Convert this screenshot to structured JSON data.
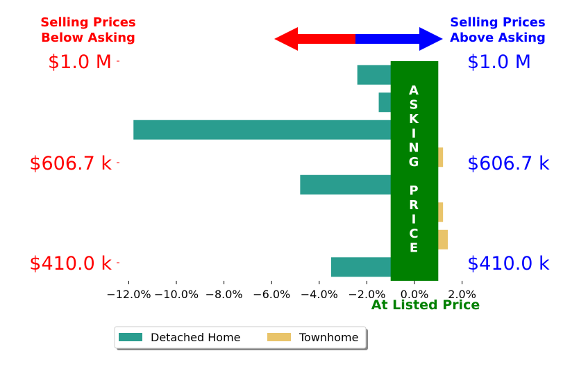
{
  "chart_data": {
    "type": "bar",
    "orientation": "horizontal",
    "annotations": {
      "left_title": [
        "Selling Prices",
        "Below Asking"
      ],
      "right_title": [
        "Selling Prices",
        "Above Asking"
      ],
      "center_band_text": "ASKING PRICE",
      "center_band_letters": [
        "A",
        "S",
        "K",
        "I",
        "N",
        "G",
        "",
        "P",
        "R",
        "I",
        "C",
        "E"
      ],
      "x_title": "At Listed Price"
    },
    "y_labels": [
      "$1.0 M",
      "$606.7 k",
      "$410.0 k"
    ],
    "xlim": [
      -13.0,
      2.5
    ],
    "x_ticks": [
      -12,
      -10,
      -8,
      -6,
      -4,
      -2,
      0,
      2
    ],
    "x_tick_labels": [
      "−12.0%",
      "−10.0%",
      "−8.0%",
      "−6.0%",
      "−4.0%",
      "−2.0%",
      "0.0%",
      "2.0%"
    ],
    "series": [
      {
        "name": "Detached Home",
        "color": "#2a9d8f",
        "values": [
          -2.4,
          -1.5,
          -11.8,
          null,
          -4.8,
          null,
          null,
          -3.5
        ]
      },
      {
        "name": "Townhome",
        "color": "#e9c46a",
        "values": [
          null,
          null,
          null,
          1.2,
          null,
          1.2,
          1.4,
          null
        ]
      }
    ],
    "band_range": [
      -1.0,
      1.0
    ],
    "colors": {
      "left": "#ff0000",
      "right": "#0000ff",
      "band": "#008000",
      "arrow_left": "#ff0000",
      "arrow_right": "#0000ff"
    },
    "legend": {
      "position": "bottom-left",
      "entries": [
        "Detached Home",
        "Townhome"
      ]
    }
  }
}
